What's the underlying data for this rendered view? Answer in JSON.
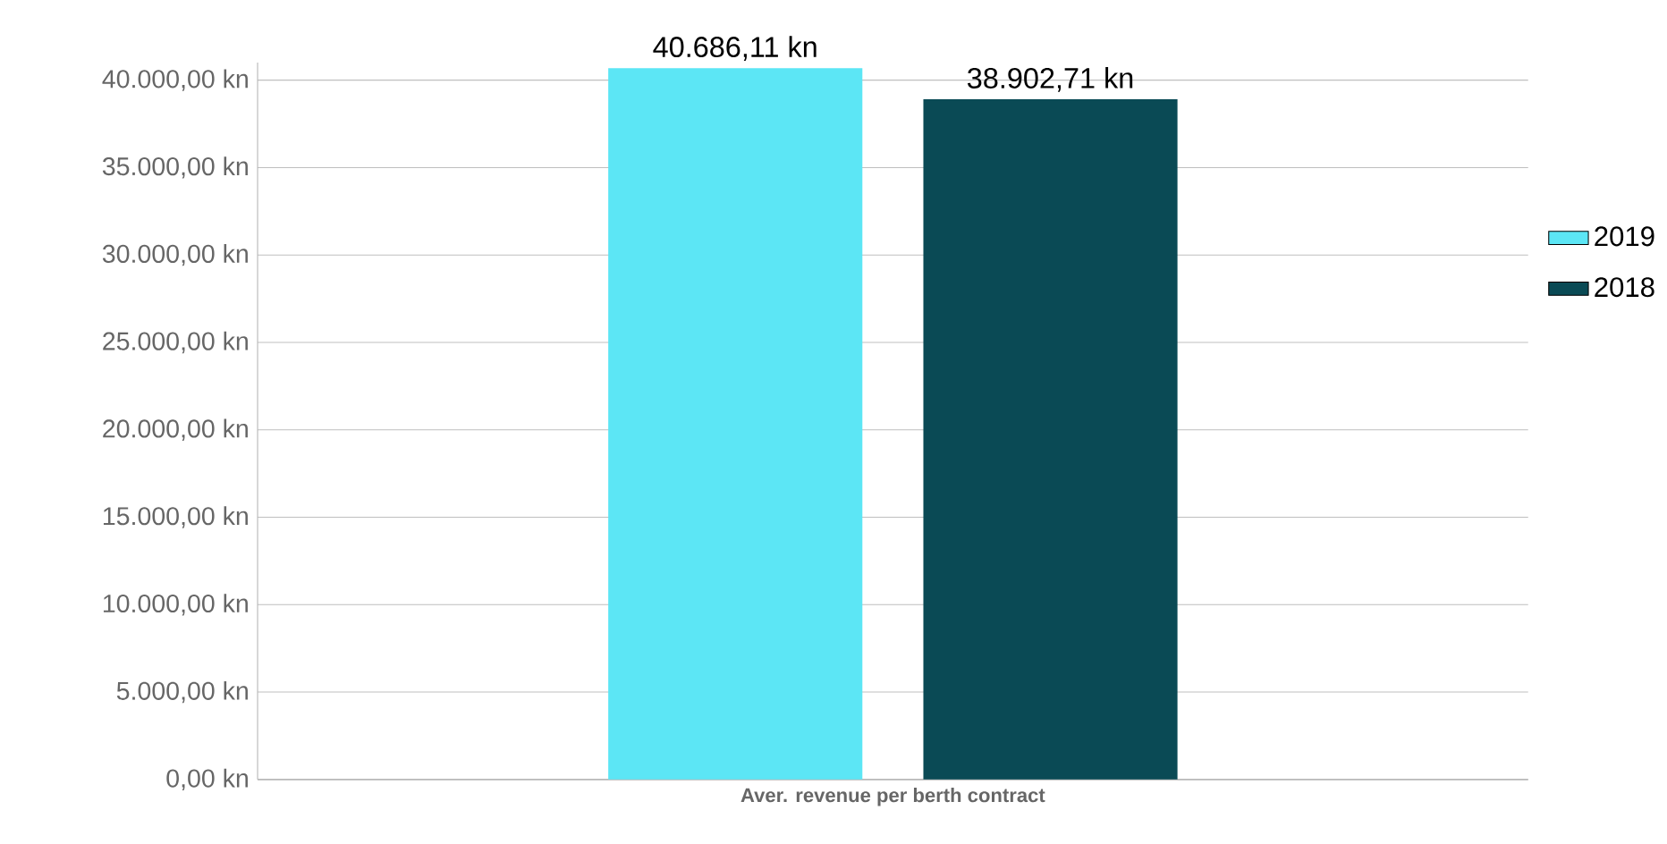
{
  "chart_data": {
    "type": "bar",
    "categories": [
      "Aver. revenue per berth contract"
    ],
    "series": [
      {
        "name": "2019",
        "color": "#5ce6f5",
        "values": [
          40686.11
        ],
        "value_labels": [
          "40.686,11 kn"
        ]
      },
      {
        "name": "2018",
        "color": "#0a4a55",
        "values": [
          38902.71
        ],
        "value_labels": [
          "38.902,71 kn"
        ]
      }
    ],
    "ylim": [
      0,
      41000
    ],
    "yticks": [
      {
        "value": 0,
        "label": "0,00 kn"
      },
      {
        "value": 5000,
        "label": "5.000,00 kn"
      },
      {
        "value": 10000,
        "label": "10.000,00 kn"
      },
      {
        "value": 15000,
        "label": "15.000,00 kn"
      },
      {
        "value": 20000,
        "label": "20.000,00 kn"
      },
      {
        "value": 25000,
        "label": "25.000,00 kn"
      },
      {
        "value": 30000,
        "label": "30.000,00 kn"
      },
      {
        "value": 35000,
        "label": "35.000,00 kn"
      },
      {
        "value": 40000,
        "label": "40.000,00 kn"
      }
    ],
    "grid": "y",
    "legend": "right"
  }
}
